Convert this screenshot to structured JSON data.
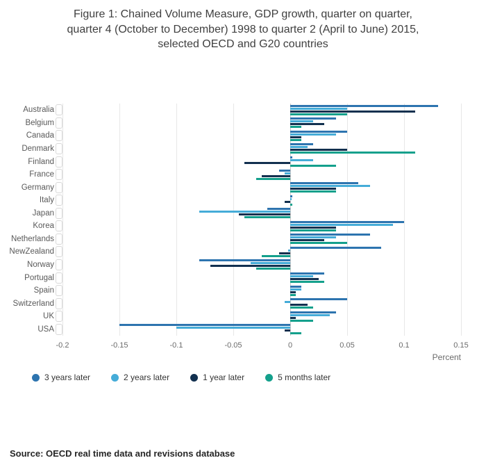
{
  "title": {
    "lines": [
      "Figure 1: Chained Volume Measure, GDP growth, quarter on quarter,",
      "quarter 4 (October to December) 1998 to quarter 2 (April to June) 2015,",
      "selected OECD and G20 countries"
    ]
  },
  "source": "Source: OECD real time data and revisions database",
  "chart_data": {
    "type": "bar",
    "orientation": "horizontal",
    "title": "Figure 1: Chained Volume Measure, GDP growth, quarter on quarter, quarter 4 (October to December) 1998 to quarter 2 (April to June) 2015, selected OECD and G20 countries",
    "xlabel": "Percent",
    "ylabel": "",
    "xlim": [
      -0.2,
      0.15
    ],
    "xticks": [
      -0.2,
      -0.15,
      -0.1,
      -0.05,
      0,
      0.05,
      0.1,
      0.15
    ],
    "xtick_labels": [
      "-0.2",
      "-0.15",
      "-0.1",
      "-0.05",
      "0",
      "0.05",
      "0.1",
      "0.15"
    ],
    "grid": true,
    "legend_position": "bottom",
    "categories": [
      "Australia",
      "Belgium",
      "Canada",
      "Denmark",
      "Finland",
      "France",
      "Germany",
      "Italy",
      "Japan",
      "Korea",
      "Netherlands",
      "NewZealand",
      "Norway",
      "Portugal",
      "Spain",
      "Switzerland",
      "UK",
      "USA"
    ],
    "series": [
      {
        "name": "3 years later",
        "color": "#2d74af",
        "values": [
          0.13,
          0.04,
          0.05,
          0.02,
          0.002,
          -0.01,
          0.06,
          0.002,
          -0.02,
          0.1,
          0.07,
          0.08,
          -0.08,
          0.03,
          0.01,
          0.05,
          0.04,
          -0.15
        ]
      },
      {
        "name": "2 years later",
        "color": "#45acd8",
        "values": [
          0.05,
          0.02,
          0.04,
          0.015,
          0.02,
          -0.005,
          0.07,
          0.001,
          -0.08,
          0.09,
          0.04,
          -0.002,
          -0.035,
          0.02,
          0.01,
          -0.005,
          0.035,
          -0.1
        ]
      },
      {
        "name": "1 year later",
        "color": "#12304f",
        "values": [
          0.11,
          0.03,
          0.01,
          0.05,
          -0.04,
          -0.025,
          0.04,
          -0.005,
          -0.045,
          0.04,
          0.03,
          -0.01,
          -0.07,
          0.025,
          0.005,
          0.015,
          0.005,
          -0.005
        ]
      },
      {
        "name": "5 months later",
        "color": "#14a08c",
        "values": [
          0.05,
          0.01,
          0.01,
          0.11,
          0.04,
          -0.03,
          0.04,
          0.002,
          -0.04,
          0.04,
          0.05,
          -0.025,
          -0.03,
          0.03,
          0.005,
          0.02,
          0.02,
          0.01
        ]
      }
    ]
  }
}
